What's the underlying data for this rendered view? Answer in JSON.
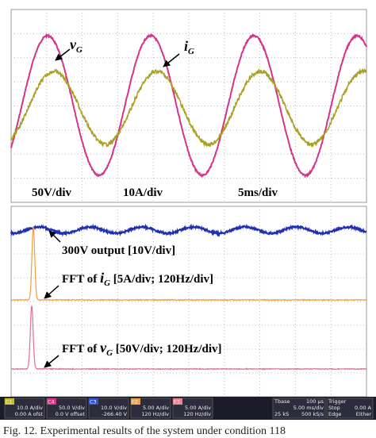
{
  "top_panel": {
    "v_label": {
      "symbol": "v",
      "sub": "G"
    },
    "i_label": {
      "symbol": "i",
      "sub": "G"
    },
    "scales": [
      "50V/div",
      "10A/div",
      "5ms/div"
    ]
  },
  "bottom_panel": {
    "output_label": "300V output [10V/div]",
    "fft_i": {
      "prefix": "FFT of ",
      "symbol": "i",
      "sub": "G",
      "suffix": " [5A/div; 120Hz/div]"
    },
    "fft_v": {
      "prefix": "FFT of ",
      "symbol": "v",
      "sub": "G",
      "suffix": " [50V/div; 120Hz/div]"
    }
  },
  "status_bar": {
    "channels": [
      {
        "tag": "C1",
        "lines": [
          "10.0 A/div",
          "0.00 A ofst"
        ]
      },
      {
        "tag": "C4",
        "lines": [
          "50.0 V/div",
          "0.0 V offset"
        ]
      },
      {
        "tag": "C3",
        "lines": [
          "10.0 V/div",
          "-266.40 V"
        ]
      },
      {
        "tag": "F2",
        "lines": [
          "5.00 A/div",
          "120 Hz/div"
        ]
      },
      {
        "tag": "F3",
        "lines": [
          "5.00 A/div",
          "120 Hz/div"
        ]
      }
    ],
    "timebase": [
      "Tbase",
      "100 µs",
      "5.00 ms/div",
      "25 kS",
      "500 kS/s"
    ],
    "trigger": [
      "Trigger",
      "Stop",
      "Edge",
      "0.00 A",
      "Either"
    ]
  },
  "caption": "Fig. 12. Experimental results of the system under condition 118"
}
